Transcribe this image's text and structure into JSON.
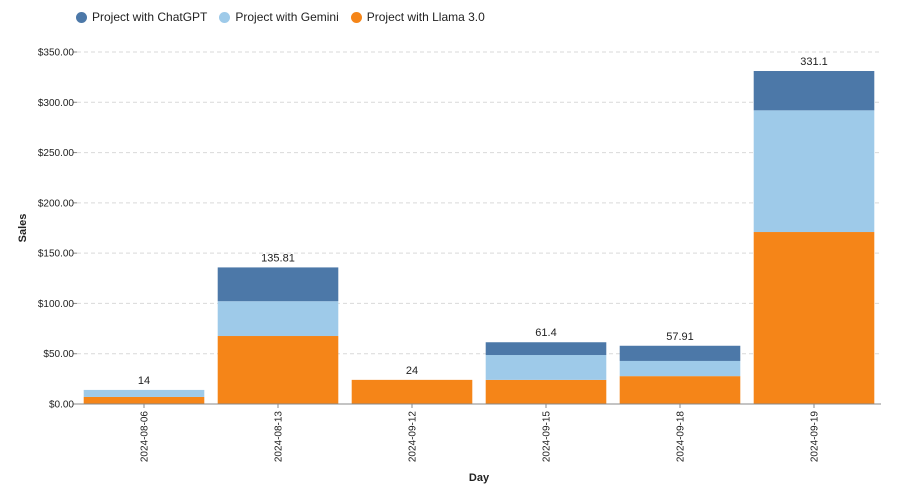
{
  "legend": [
    {
      "name": "Project with ChatGPT",
      "color": "#4c78a8"
    },
    {
      "name": "Project with Gemini",
      "color": "#9ecae9"
    },
    {
      "name": "Project with Llama 3.0",
      "color": "#f58518"
    }
  ],
  "chart_data": {
    "type": "bar",
    "stacked": true,
    "xlabel": "Day",
    "ylabel": "Sales",
    "ylim": [
      0,
      350
    ],
    "y_ticks": [
      0,
      50,
      100,
      150,
      200,
      250,
      300,
      350
    ],
    "y_tick_labels": [
      "$0.00",
      "$50.00",
      "$100.00",
      "$150.00",
      "$200.00",
      "$250.00",
      "$300.00",
      "$350.00"
    ],
    "grid": true,
    "legend_position": "top-left",
    "categories": [
      "2024-08-06",
      "2024-08-13",
      "2024-09-12",
      "2024-09-15",
      "2024-09-18",
      "2024-09-19"
    ],
    "series": [
      {
        "name": "Project with Llama 3.0",
        "color": "#f58518",
        "values": [
          7,
          67.6,
          24,
          24,
          27.7,
          171
        ]
      },
      {
        "name": "Project with Gemini",
        "color": "#9ecae9",
        "values": [
          7,
          34.6,
          0,
          24.7,
          15.1,
          121
        ]
      },
      {
        "name": "Project with ChatGPT",
        "color": "#4c78a8",
        "values": [
          0,
          33.61,
          0,
          12.7,
          15.11,
          39.1
        ]
      }
    ],
    "totals": [
      "14",
      "135.81",
      "24",
      "61.4",
      "57.91",
      "331.1"
    ]
  }
}
